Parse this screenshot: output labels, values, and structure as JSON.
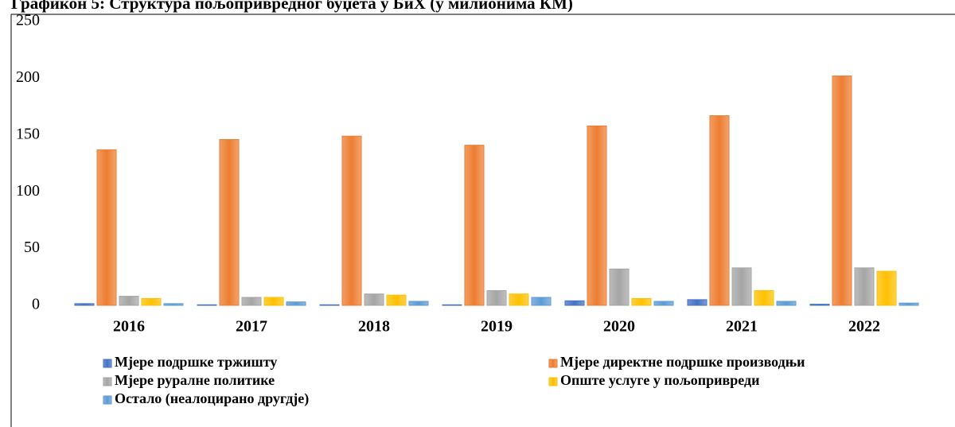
{
  "chart_data": {
    "type": "bar",
    "title": "Графикон 5: Структура пољопривредног буџета у БиХ (у милионима КМ)",
    "categories": [
      "2016",
      "2017",
      "2018",
      "2019",
      "2020",
      "2021",
      "2022"
    ],
    "series": [
      {
        "name": "Мјере подршке тржишту",
        "color": "#4472c4",
        "values": [
          1.5,
          0.5,
          0.5,
          0.5,
          4,
          5,
          1
        ]
      },
      {
        "name": "Мјере директне подршке производњи",
        "color": "#ed7d31",
        "values": [
          137,
          146,
          149,
          141,
          158,
          167,
          202
        ]
      },
      {
        "name": "Мјере руралне политике",
        "color": "#a5a5a5",
        "values": [
          8,
          7,
          10,
          13,
          32,
          33,
          33
        ]
      },
      {
        "name": "Опште услуге у пољопривреди",
        "color": "#ffc000",
        "values": [
          6,
          7,
          9,
          10,
          6,
          13,
          30
        ]
      },
      {
        "name": "Остало (неалоцирано другдје)",
        "color": "#5b9bd5",
        "values": [
          1.5,
          3,
          3.5,
          7,
          3.5,
          3.5,
          2
        ]
      }
    ],
    "ylim": [
      0,
      250
    ],
    "yticks": [
      0,
      50,
      100,
      150,
      200,
      250
    ],
    "grid": false,
    "legend": "bottom"
  }
}
